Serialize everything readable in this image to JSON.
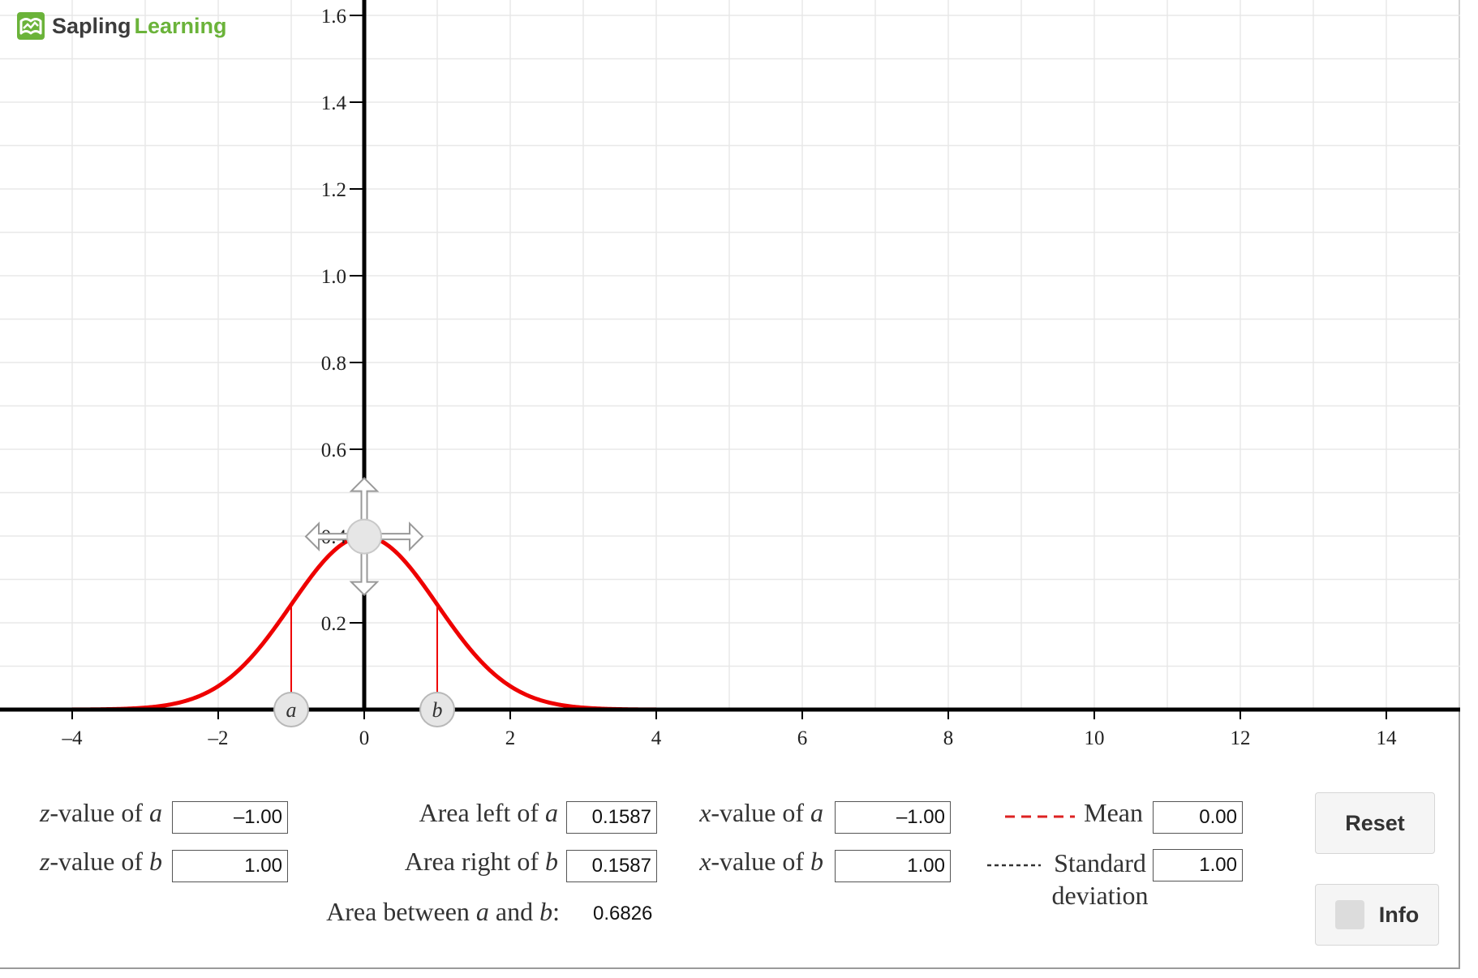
{
  "app": {
    "logo_word1": "Sapling",
    "logo_word2": "Learning"
  },
  "chart_data": {
    "type": "line",
    "title": "",
    "xlabel": "",
    "ylabel": "",
    "xlim": [
      -4,
      14.2
    ],
    "ylim": [
      0,
      1.6
    ],
    "x_ticks": [
      -4,
      -2,
      0,
      2,
      4,
      6,
      8,
      10,
      12,
      14
    ],
    "y_ticks": [
      0.2,
      0.4,
      0.6,
      0.8,
      1.0,
      1.2,
      1.4,
      1.6
    ],
    "x_tick_labels": [
      "–4",
      "–2",
      "0",
      "2",
      "4",
      "6",
      "8",
      "10",
      "12",
      "14"
    ],
    "y_tick_labels": [
      "0.2",
      "0.4",
      "0.6",
      "0.8",
      "1.0",
      "1.2",
      "1.4",
      "1.6"
    ],
    "grid": true,
    "curve": {
      "kind": "normal_pdf",
      "mean": 0.0,
      "sd": 1.0,
      "x_range": [
        -4,
        4
      ],
      "color": "#ee0000"
    },
    "markers": [
      {
        "label": "a",
        "x": -1.0
      },
      {
        "label": "b",
        "x": 1.0
      }
    ],
    "peak_handle": {
      "x": 0.0,
      "y": 0.3989
    },
    "mean_line_color": "#dd2222"
  },
  "controls": {
    "z_a": {
      "label_pre": "z",
      "label_mid": "-value of ",
      "label_var": "a",
      "value": "–1.00"
    },
    "z_b": {
      "label_pre": "z",
      "label_mid": "-value of ",
      "label_var": "b",
      "value": "1.00"
    },
    "area_left": {
      "label_text": "Area left of ",
      "label_var": "a",
      "value": "0.1587"
    },
    "area_right": {
      "label_text": "Area right of ",
      "label_var": "b",
      "value": "0.1587"
    },
    "area_between": {
      "label_text": "Area between ",
      "var_a": "a",
      "and": " and ",
      "var_b": "b",
      "colon": ":",
      "value": "0.6826"
    },
    "x_a": {
      "label_pre": "x",
      "label_mid": "-value of ",
      "label_var": "a",
      "value": "–1.00"
    },
    "x_b": {
      "label_pre": "x",
      "label_mid": "-value of ",
      "label_var": "b",
      "value": "1.00"
    },
    "mean": {
      "label": "Mean",
      "value": "0.00"
    },
    "sd": {
      "label_line1": "Standard",
      "label_line2": "deviation",
      "value": "1.00"
    }
  },
  "buttons": {
    "reset": "Reset",
    "info": "Info"
  }
}
